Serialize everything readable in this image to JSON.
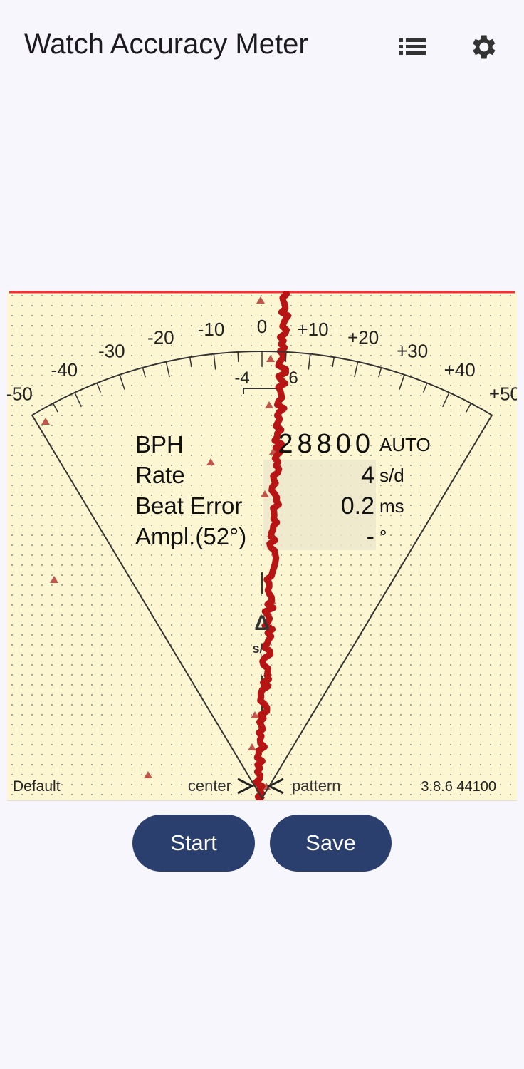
{
  "header": {
    "title": "Watch Accuracy Meter"
  },
  "meter": {
    "scale_labels": [
      "-50",
      "-40",
      "-30",
      "-20",
      "-10",
      "0",
      "+10",
      "+20",
      "+30",
      "+40",
      "+50"
    ],
    "inner_labels": [
      "-4",
      "6"
    ],
    "readings": [
      {
        "label": "BPH",
        "value": "28800",
        "unit": "AUTO"
      },
      {
        "label": "Rate",
        "value": "4",
        "unit": "s/d"
      },
      {
        "label": "Beat Error",
        "value": "0.2",
        "unit": "ms"
      },
      {
        "label": "Ampl.(52°)",
        "value": "-",
        "unit": "°"
      }
    ],
    "delta_symbol": "Δ",
    "delta_unit": "s/",
    "footer": {
      "profile": "Default",
      "center": "center",
      "pattern": "pattern",
      "version": "3.8.6 44100"
    }
  },
  "buttons": {
    "start": "Start",
    "save": "Save"
  }
}
